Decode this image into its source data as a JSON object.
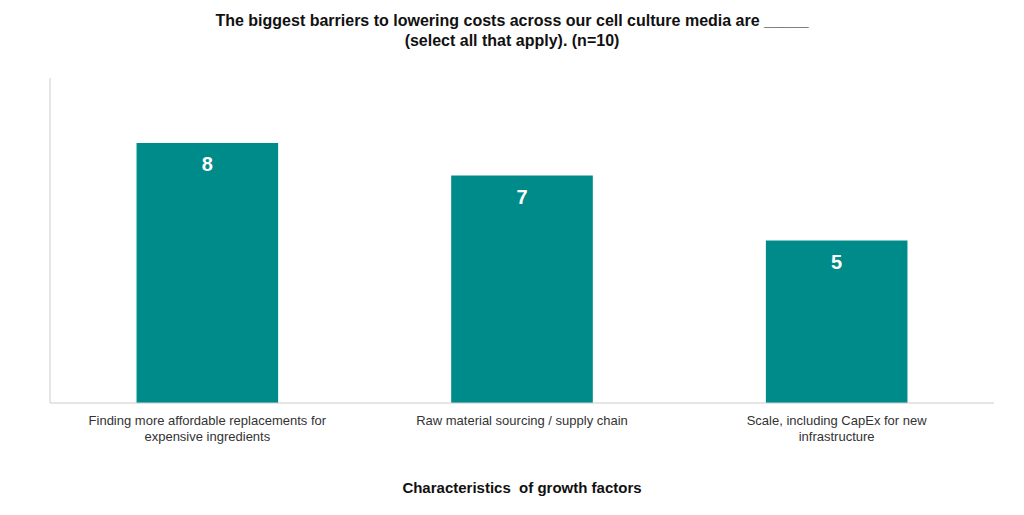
{
  "chart_data": {
    "type": "bar",
    "title": "The biggest barriers to lowering costs across our cell culture media are _____\n(select all that apply). (n=10)",
    "x_label": "Characteristics  of growth factors",
    "categories": [
      "Finding more affordable replacements for\nexpensive ingredients",
      "Raw material sourcing / supply chain",
      "Scale, including CapEx for new\ninfrastructure"
    ],
    "values": [
      8,
      7,
      5
    ],
    "color": "#008B8B",
    "ylim": [
      0,
      10
    ],
    "grid": false,
    "data_labels": true,
    "tick_labels": "x"
  }
}
